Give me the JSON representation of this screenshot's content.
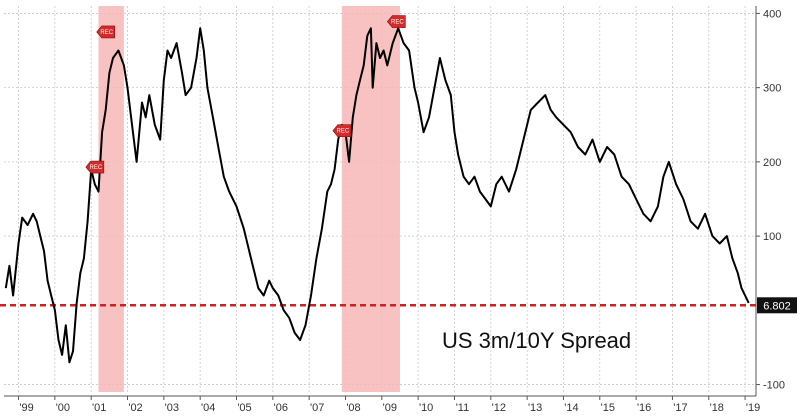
{
  "chart_data": {
    "type": "line",
    "title": "",
    "xlabel": "",
    "ylabel": "",
    "annotation": "US 3m/10Y Spread",
    "x_range": [
      1998.6,
      2019.3
    ],
    "ylim": [
      -110,
      410
    ],
    "y_ticks": [
      -100,
      100,
      200,
      300,
      400
    ],
    "y_tick_labels": [
      "-100",
      "100",
      "200",
      "300",
      "400"
    ],
    "x_ticks": [
      1999,
      2000,
      2001,
      2002,
      2003,
      2004,
      2005,
      2006,
      2007,
      2008,
      2009,
      2010,
      2011,
      2012,
      2013,
      2014,
      2015,
      2016,
      2017,
      2018,
      2019
    ],
    "x_tick_labels": [
      "'99",
      "'00",
      "'01",
      "'02",
      "'03",
      "'04",
      "'05",
      "'06",
      "'07",
      "'08",
      "'09",
      "'10",
      "'11",
      "'12",
      "'13",
      "'14",
      "'15",
      "'16",
      "'17",
      "'18",
      "'19"
    ],
    "grid": true,
    "recessions": [
      {
        "start": 2001.2,
        "end": 2001.9
      },
      {
        "start": 2007.9,
        "end": 2009.5
      }
    ],
    "rec_markers": [
      {
        "label": "REC",
        "x": 2001.4,
        "y": 375
      },
      {
        "label": "REC",
        "x": 2001.1,
        "y": 193
      },
      {
        "label": "REC",
        "x": 2007.9,
        "y": 242
      },
      {
        "label": "REC",
        "x": 2009.4,
        "y": 389
      }
    ],
    "reference_line": {
      "value": 6.802,
      "label": "6.802",
      "color": "#cc2222"
    },
    "series": [
      {
        "x": [
          1998.65,
          1998.75,
          1998.85,
          1999.0,
          1999.1,
          1999.25,
          1999.4,
          1999.5,
          1999.6,
          1999.7,
          1999.8,
          1999.9,
          2000.0,
          2000.1,
          2000.2,
          2000.3,
          2000.4,
          2000.5,
          2000.6,
          2000.7,
          2000.8,
          2000.9,
          2001.0,
          2001.1,
          2001.2,
          2001.3,
          2001.4,
          2001.5,
          2001.6,
          2001.75,
          2001.9,
          2002.0,
          2002.1,
          2002.25,
          2002.4,
          2002.5,
          2002.6,
          2002.75,
          2002.9,
          2003.0,
          2003.1,
          2003.2,
          2003.35,
          2003.5,
          2003.6,
          2003.75,
          2003.9,
          2004.0,
          2004.1,
          2004.2,
          2004.35,
          2004.5,
          2004.65,
          2004.8,
          2005.0,
          2005.2,
          2005.4,
          2005.6,
          2005.75,
          2005.9,
          2006.0,
          2006.15,
          2006.3,
          2006.45,
          2006.6,
          2006.75,
          2006.9,
          2007.05,
          2007.2,
          2007.35,
          2007.5,
          2007.6,
          2007.7,
          2007.8,
          2007.9,
          2008.0,
          2008.1,
          2008.2,
          2008.3,
          2008.4,
          2008.5,
          2008.6,
          2008.7,
          2008.75,
          2008.85,
          2008.95,
          2009.05,
          2009.15,
          2009.3,
          2009.45,
          2009.6,
          2009.75,
          2009.9,
          2010.0,
          2010.15,
          2010.3,
          2010.45,
          2010.6,
          2010.75,
          2010.9,
          2011.0,
          2011.1,
          2011.25,
          2011.4,
          2011.55,
          2011.7,
          2011.85,
          2012.0,
          2012.15,
          2012.3,
          2012.5,
          2012.7,
          2012.9,
          2013.1,
          2013.3,
          2013.5,
          2013.65,
          2013.8,
          2014.0,
          2014.2,
          2014.4,
          2014.6,
          2014.8,
          2015.0,
          2015.2,
          2015.4,
          2015.6,
          2015.8,
          2016.0,
          2016.2,
          2016.4,
          2016.6,
          2016.75,
          2016.9,
          2017.1,
          2017.3,
          2017.5,
          2017.7,
          2017.9,
          2018.1,
          2018.3,
          2018.5,
          2018.65,
          2018.8,
          2018.9,
          2019.0,
          2019.1
        ],
        "values": [
          30,
          60,
          20,
          90,
          125,
          115,
          130,
          120,
          100,
          80,
          40,
          20,
          0,
          -40,
          -60,
          -20,
          -70,
          -55,
          10,
          50,
          70,
          120,
          190,
          170,
          160,
          240,
          270,
          320,
          340,
          350,
          330,
          300,
          260,
          200,
          280,
          260,
          290,
          250,
          230,
          310,
          350,
          340,
          360,
          320,
          290,
          300,
          340,
          380,
          350,
          300,
          260,
          220,
          180,
          160,
          140,
          110,
          70,
          30,
          20,
          40,
          30,
          20,
          0,
          -10,
          -30,
          -40,
          -20,
          20,
          70,
          110,
          160,
          170,
          190,
          230,
          250,
          240,
          200,
          260,
          290,
          310,
          330,
          370,
          380,
          300,
          360,
          340,
          350,
          330,
          360,
          380,
          360,
          350,
          300,
          280,
          240,
          260,
          300,
          340,
          310,
          290,
          240,
          210,
          180,
          170,
          180,
          160,
          150,
          140,
          170,
          180,
          160,
          190,
          230,
          270,
          280,
          290,
          270,
          260,
          250,
          240,
          220,
          210,
          230,
          200,
          220,
          210,
          180,
          170,
          150,
          130,
          120,
          140,
          180,
          200,
          170,
          150,
          120,
          110,
          130,
          100,
          90,
          100,
          70,
          50,
          30,
          20,
          10
        ]
      }
    ]
  }
}
